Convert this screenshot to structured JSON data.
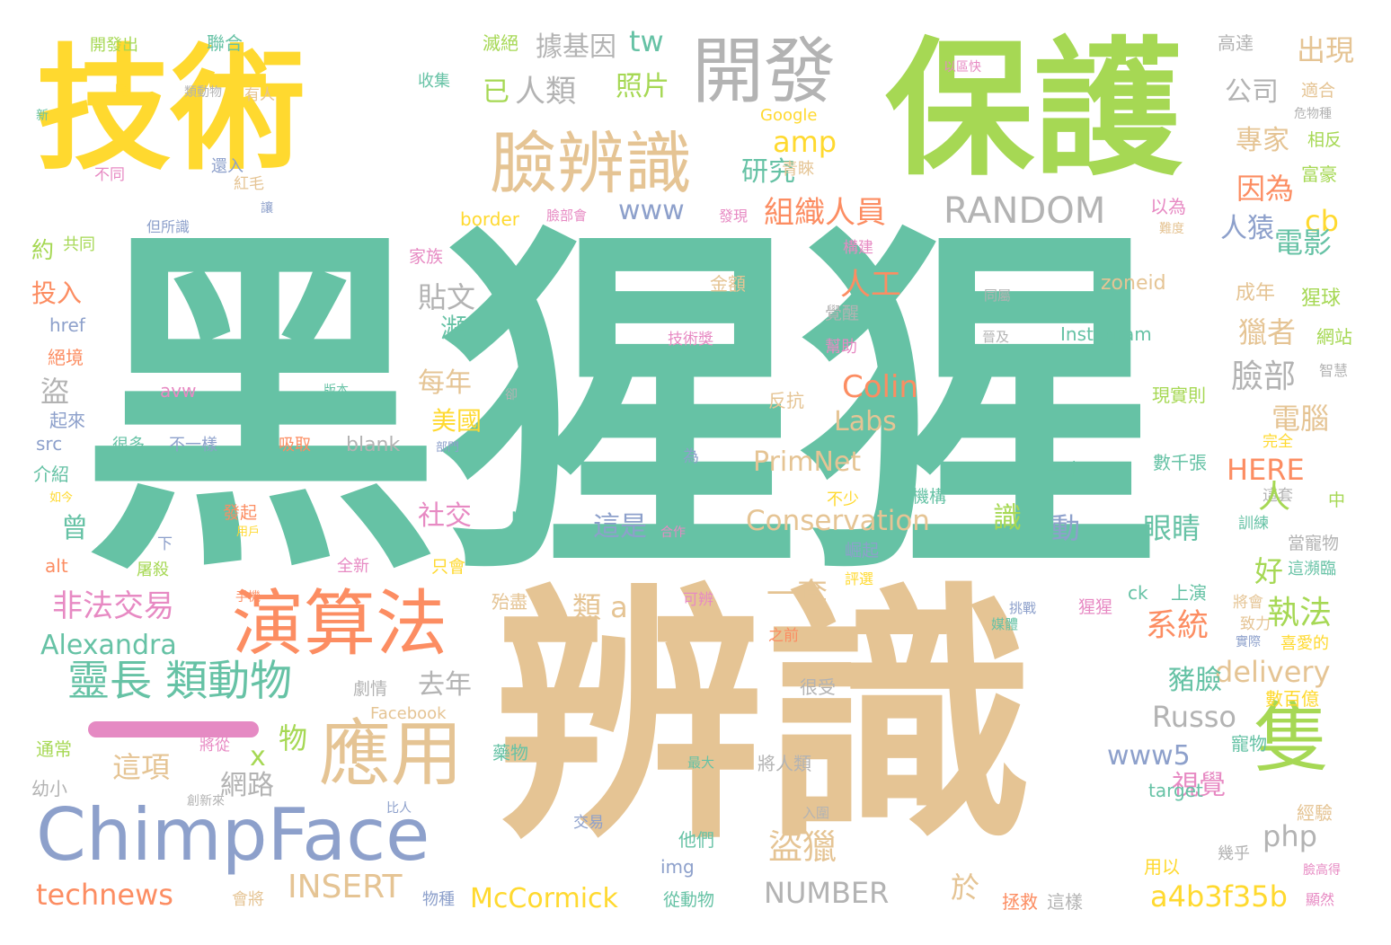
{
  "title": "",
  "palette": {
    "teal": "#66c2a5",
    "orange": "#fc8d62",
    "blue": "#8da0cb",
    "pink": "#e78ac3",
    "green": "#a6d854",
    "yellow": "#ffd92f",
    "tan": "#e5c494",
    "gray": "#b3b3b3"
  },
  "words": [
    {
      "text": "黑猩猩",
      "color": "teal"
    },
    {
      "text": "辨識",
      "color": "tan"
    },
    {
      "text": "保護",
      "color": "green"
    },
    {
      "text": "技術",
      "color": "yellow"
    },
    {
      "text": "開發",
      "color": "gray"
    },
    {
      "text": "臉辨識",
      "color": "tan"
    },
    {
      "text": "演算法",
      "color": "orange"
    },
    {
      "text": "ChimpFace",
      "color": "blue"
    },
    {
      "text": "應用",
      "color": "tan"
    },
    {
      "text": "隻",
      "color": "green"
    },
    {
      "text": "靈長 類動物",
      "color": "teal"
    },
    {
      "text": "RANDOM",
      "color": "gray"
    },
    {
      "text": "組織人員",
      "color": "orange"
    },
    {
      "text": "因為",
      "color": "orange"
    },
    {
      "text": "專家",
      "color": "tan"
    },
    {
      "text": "公司",
      "color": "gray"
    },
    {
      "text": "出現",
      "color": "tan"
    },
    {
      "text": "高達",
      "color": "gray"
    },
    {
      "text": "適合",
      "color": "tan"
    },
    {
      "text": "危物種",
      "color": "gray"
    },
    {
      "text": "相反",
      "color": "green"
    },
    {
      "text": "富豪",
      "color": "green"
    },
    {
      "text": "以為",
      "color": "pink"
    },
    {
      "text": "難度",
      "color": "tan"
    },
    {
      "text": "cb",
      "color": "yellow"
    },
    {
      "text": "人猿",
      "color": "blue"
    },
    {
      "text": "電影",
      "color": "teal"
    },
    {
      "text": "人工",
      "color": "orange"
    },
    {
      "text": "zoneid",
      "color": "tan"
    },
    {
      "text": "成年",
      "color": "tan"
    },
    {
      "text": "猩球",
      "color": "green"
    },
    {
      "text": "網站",
      "color": "green"
    },
    {
      "text": "智慧",
      "color": "gray"
    },
    {
      "text": "獵者",
      "color": "tan"
    },
    {
      "text": "臉部",
      "color": "gray"
    },
    {
      "text": "電腦",
      "color": "tan"
    },
    {
      "text": "Instagram",
      "color": "teal"
    },
    {
      "text": "晉及",
      "color": "gray"
    },
    {
      "text": "現實則",
      "color": "green"
    },
    {
      "text": "完全",
      "color": "yellow"
    },
    {
      "text": "HERE",
      "color": "orange"
    },
    {
      "text": "數千張",
      "color": "teal"
    },
    {
      "text": "這套",
      "color": "gray"
    },
    {
      "text": "中",
      "color": "green"
    },
    {
      "text": "訓練",
      "color": "teal"
    },
    {
      "text": "當寵物",
      "color": "gray"
    },
    {
      "text": "人",
      "color": "green"
    },
    {
      "text": "識",
      "color": "green"
    },
    {
      "text": "動",
      "color": "blue"
    },
    {
      "text": "眼睛",
      "color": "teal"
    },
    {
      "text": "一步",
      "color": "teal"
    },
    {
      "text": "好",
      "color": "green"
    },
    {
      "text": "上演",
      "color": "teal"
    },
    {
      "text": "這瀕臨",
      "color": "teal"
    },
    {
      "text": "將會",
      "color": "tan"
    },
    {
      "text": "致力",
      "color": "tan"
    },
    {
      "text": "實際",
      "color": "blue"
    },
    {
      "text": "喜愛的",
      "color": "yellow"
    },
    {
      "text": "系統",
      "color": "orange"
    },
    {
      "text": "執法",
      "color": "green"
    },
    {
      "text": "delivery",
      "color": "tan"
    },
    {
      "text": "數百億",
      "color": "yellow"
    },
    {
      "text": "豬臉",
      "color": "teal"
    },
    {
      "text": "Russo",
      "color": "gray"
    },
    {
      "text": "www5",
      "color": "blue"
    },
    {
      "text": "寵物",
      "color": "teal"
    },
    {
      "text": "視覺",
      "color": "pink"
    },
    {
      "text": "php",
      "color": "gray"
    },
    {
      "text": "target",
      "color": "teal"
    },
    {
      "text": "經驗",
      "color": "tan"
    },
    {
      "text": "用以",
      "color": "yellow"
    },
    {
      "text": "幾乎",
      "color": "gray"
    },
    {
      "text": "臉高得",
      "color": "pink"
    },
    {
      "text": "a4b3f35b",
      "color": "yellow"
    },
    {
      "text": "顯然",
      "color": "pink"
    },
    {
      "text": "拯救",
      "color": "orange"
    },
    {
      "text": "這樣",
      "color": "gray"
    },
    {
      "text": "於",
      "color": "tan"
    },
    {
      "text": "NUMBER",
      "color": "gray"
    },
    {
      "text": "McCormick",
      "color": "yellow"
    },
    {
      "text": "INSERT",
      "color": "tan"
    },
    {
      "text": "technews",
      "color": "orange"
    },
    {
      "text": "會將",
      "color": "tan"
    },
    {
      "text": "物種",
      "color": "blue"
    },
    {
      "text": "從動物",
      "color": "teal"
    },
    {
      "text": "img",
      "color": "blue"
    },
    {
      "text": "他們",
      "color": "teal"
    },
    {
      "text": "交易",
      "color": "blue"
    },
    {
      "text": "入圍",
      "color": "gray"
    },
    {
      "text": "盜獵",
      "color": "tan"
    },
    {
      "text": "將人類",
      "color": "gray"
    },
    {
      "text": "最大",
      "color": "teal"
    },
    {
      "text": "藥物",
      "color": "teal"
    },
    {
      "text": "比人",
      "color": "blue"
    },
    {
      "text": "創新來",
      "color": "gray"
    },
    {
      "text": "幼小",
      "color": "gray"
    },
    {
      "text": "通常",
      "color": "green"
    },
    {
      "text": "x",
      "color": "green"
    },
    {
      "text": "網路",
      "color": "gray"
    },
    {
      "text": "這項",
      "color": "tan"
    },
    {
      "text": "物",
      "color": "green"
    },
    {
      "text": "將從",
      "color": "pink"
    },
    {
      "text": "Facebook",
      "color": "tan"
    },
    {
      "text": "劇情",
      "color": "gray"
    },
    {
      "text": "去年",
      "color": "gray"
    },
    {
      "text": "很受",
      "color": "gray"
    },
    {
      "text": "Alexandra",
      "color": "teal"
    },
    {
      "text": "非法交易",
      "color": "pink"
    },
    {
      "text": "一套",
      "color": "tan"
    },
    {
      "text": "類 a",
      "color": "tan"
    },
    {
      "text": "殆盡",
      "color": "tan"
    },
    {
      "text": "可辨",
      "color": "pink"
    },
    {
      "text": "之前",
      "color": "orange"
    },
    {
      "text": "挑戰",
      "color": "blue"
    },
    {
      "text": "媒體",
      "color": "teal"
    },
    {
      "text": "猩猩",
      "color": "pink"
    },
    {
      "text": "ck",
      "color": "teal"
    },
    {
      "text": "alt",
      "color": "orange"
    },
    {
      "text": "屠殺",
      "color": "green"
    },
    {
      "text": "全新",
      "color": "pink"
    },
    {
      "text": "只會",
      "color": "yellow"
    },
    {
      "text": "手機",
      "color": "orange"
    },
    {
      "text": "評選",
      "color": "yellow"
    },
    {
      "text": "崛起",
      "color": "blue"
    },
    {
      "text": "機構",
      "color": "teal"
    },
    {
      "text": "不少",
      "color": "yellow"
    },
    {
      "text": "下",
      "color": "blue"
    },
    {
      "text": "發起",
      "color": "orange"
    },
    {
      "text": "用戶",
      "color": "yellow"
    },
    {
      "text": "如今",
      "color": "yellow"
    },
    {
      "text": "曾",
      "color": "teal"
    },
    {
      "text": "介紹",
      "color": "teal"
    },
    {
      "text": "src",
      "color": "blue"
    },
    {
      "text": "很多",
      "color": "teal"
    },
    {
      "text": "不一樣",
      "color": "blue"
    },
    {
      "text": "吸取",
      "color": "orange"
    },
    {
      "text": "blank",
      "color": "gray"
    },
    {
      "text": "部門",
      "color": "blue"
    },
    {
      "text": "起來",
      "color": "blue"
    },
    {
      "text": "avw",
      "color": "pink"
    },
    {
      "text": "版本",
      "color": "teal"
    },
    {
      "text": "卻",
      "color": "gray"
    },
    {
      "text": "絕境",
      "color": "orange"
    },
    {
      "text": "href",
      "color": "blue"
    },
    {
      "text": "投入",
      "color": "orange"
    },
    {
      "text": "約",
      "color": "green"
    },
    {
      "text": "共同",
      "color": "green"
    },
    {
      "text": "但所識",
      "color": "blue"
    },
    {
      "text": "家族",
      "color": "pink"
    },
    {
      "text": "構建",
      "color": "pink"
    },
    {
      "text": "金額",
      "color": "tan"
    },
    {
      "text": "覺醒",
      "color": "gray"
    },
    {
      "text": "技術獎",
      "color": "pink"
    },
    {
      "text": "幫助",
      "color": "pink"
    },
    {
      "text": "同屬",
      "color": "gray"
    },
    {
      "text": "反抗",
      "color": "tan"
    },
    {
      "text": "Labs",
      "color": "tan"
    },
    {
      "text": "Colin",
      "color": "orange"
    },
    {
      "text": "PrimNet",
      "color": "tan"
    },
    {
      "text": "Conservation",
      "color": "tan"
    },
    {
      "text": "為",
      "color": "blue"
    },
    {
      "text": "合作",
      "color": "pink"
    },
    {
      "text": "這是",
      "color": "blue"
    },
    {
      "text": "n",
      "color": "teal"
    },
    {
      "text": "社交",
      "color": "pink"
    },
    {
      "text": "美國",
      "color": "yellow"
    },
    {
      "text": "每年",
      "color": "tan"
    },
    {
      "text": "盜",
      "color": "gray"
    },
    {
      "text": "貼文",
      "color": "gray"
    },
    {
      "text": "瀕",
      "color": "teal"
    },
    {
      "text": "研究",
      "color": "teal"
    },
    {
      "text": "青睞",
      "color": "tan"
    },
    {
      "text": "amp",
      "color": "yellow"
    },
    {
      "text": "www",
      "color": "blue"
    },
    {
      "text": "border",
      "color": "yellow"
    },
    {
      "text": "臉部會",
      "color": "pink"
    },
    {
      "text": "發現",
      "color": "pink"
    },
    {
      "text": "Google",
      "color": "yellow"
    },
    {
      "text": "照片",
      "color": "green"
    },
    {
      "text": "已",
      "color": "green"
    },
    {
      "text": "人類",
      "color": "gray"
    },
    {
      "text": "據基因",
      "color": "gray"
    },
    {
      "text": "tw",
      "color": "teal"
    },
    {
      "text": "滅絕",
      "color": "green"
    },
    {
      "text": "收集",
      "color": "teal"
    },
    {
      "text": "以區快",
      "color": "pink"
    },
    {
      "text": "聯合",
      "color": "teal"
    },
    {
      "text": "開發出",
      "color": "green"
    },
    {
      "text": "時",
      "color": "yellow"
    },
    {
      "text": "類動物",
      "color": "gray"
    },
    {
      "text": "有人",
      "color": "tan"
    },
    {
      "text": "新",
      "color": "teal"
    },
    {
      "text": "還入",
      "color": "blue"
    },
    {
      "text": "紅毛",
      "color": "tan"
    },
    {
      "text": "不同",
      "color": "pink"
    },
    {
      "text": "讓",
      "color": "blue"
    }
  ]
}
